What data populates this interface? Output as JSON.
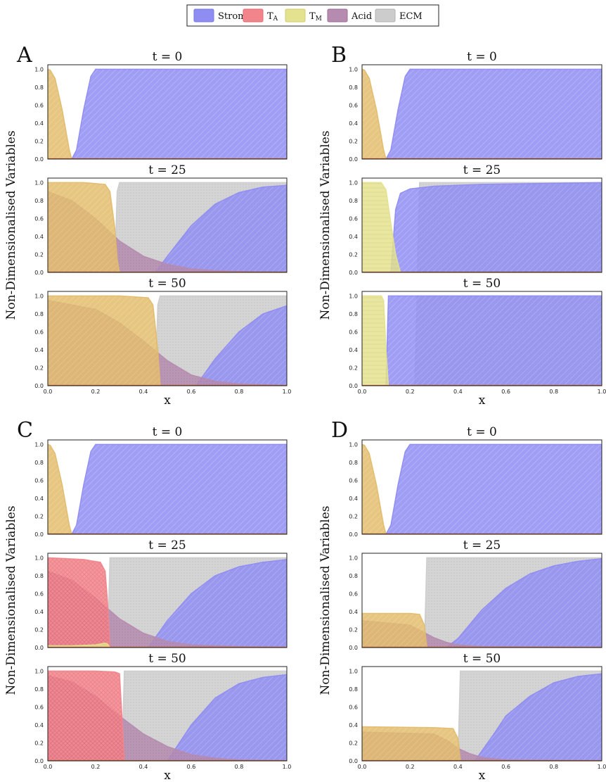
{
  "legend": {
    "placement": "top-center",
    "items": [
      {
        "label": "Stroma",
        "color": "#8f8cf2",
        "edge": "#7b78e0"
      },
      {
        "label": "T",
        "sub": "A",
        "color": "#f2848b",
        "edge": "#e46a72"
      },
      {
        "label": "T",
        "sub": "M",
        "color": "#e4e28e",
        "edge": "#cfcc70"
      },
      {
        "label": "Acid",
        "color": "#b58bb0",
        "edge": "#9c6f98"
      },
      {
        "label": "ECM",
        "color": "#cccccc",
        "edge": "#b3b3b3"
      }
    ]
  },
  "colors": {
    "stroma": "#8f8cf2",
    "ta": "#f2848b",
    "tm": "#e4e28e",
    "acid": "#b58bb0",
    "ecm": "#cccccc",
    "mixed_tumour": "#e2bc6c",
    "baseline": "#c05a28"
  },
  "shared": {
    "ylabel": "Non-Dimensionalised Variables",
    "xlabel": "x",
    "xticks": [
      "0.0",
      "0.2",
      "0.4",
      "0.6",
      "0.8",
      "1.0"
    ],
    "yticks": [
      "0.0",
      "0.2",
      "0.4",
      "0.6",
      "0.8",
      "1.0"
    ],
    "xlim": [
      0,
      1
    ],
    "ylim": [
      0,
      1.05
    ],
    "grid": false
  },
  "chart_data": [
    {
      "panel": "A",
      "type": "area",
      "subplots": [
        {
          "title": "t = 0",
          "layers": [
            {
              "var": "stroma",
              "x": [
                0,
                0.1,
                0.12,
                0.15,
                0.18,
                0.2,
                1.0
              ],
              "y": [
                0,
                0,
                0.1,
                0.55,
                0.92,
                1.0,
                1.0
              ]
            },
            {
              "var": "mixed_tumour",
              "x": [
                0,
                0.01,
                0.03,
                0.06,
                0.09,
                0.1,
                1.0
              ],
              "y": [
                1.0,
                0.99,
                0.9,
                0.55,
                0.1,
                0,
                0
              ]
            }
          ]
        },
        {
          "title": "t = 25",
          "layers": [
            {
              "var": "ecm",
              "x": [
                0,
                0.28,
                0.29,
                0.3,
                1.0
              ],
              "y": [
                0,
                0,
                0.9,
                1.0,
                1.0
              ]
            },
            {
              "var": "stroma",
              "x": [
                0,
                0.45,
                0.5,
                0.6,
                0.7,
                0.8,
                0.9,
                1.0
              ],
              "y": [
                0,
                0,
                0.18,
                0.52,
                0.76,
                0.89,
                0.95,
                0.97
              ]
            },
            {
              "var": "acid",
              "x": [
                0,
                0.1,
                0.2,
                0.3,
                0.4,
                0.5,
                0.6,
                0.7,
                0.8,
                1.0
              ],
              "y": [
                0.9,
                0.8,
                0.6,
                0.35,
                0.18,
                0.09,
                0.04,
                0.02,
                0.01,
                0
              ]
            },
            {
              "var": "mixed_tumour",
              "x": [
                0,
                0.15,
                0.24,
                0.26,
                0.28,
                0.29,
                0.3,
                1.0
              ],
              "y": [
                1.0,
                1.0,
                0.98,
                0.9,
                0.5,
                0.15,
                0,
                0
              ]
            }
          ]
        },
        {
          "title": "t = 50",
          "layers": [
            {
              "var": "ecm",
              "x": [
                0,
                0.45,
                0.46,
                0.47,
                1.0
              ],
              "y": [
                0,
                0,
                0.9,
                1.0,
                1.0
              ]
            },
            {
              "var": "stroma",
              "x": [
                0,
                0.62,
                0.7,
                0.8,
                0.9,
                1.0
              ],
              "y": [
                0,
                0,
                0.3,
                0.6,
                0.8,
                0.89
              ]
            },
            {
              "var": "acid",
              "x": [
                0,
                0.2,
                0.3,
                0.4,
                0.5,
                0.6,
                0.7,
                0.8,
                1.0
              ],
              "y": [
                0.95,
                0.85,
                0.7,
                0.5,
                0.28,
                0.12,
                0.05,
                0.02,
                0
              ]
            },
            {
              "var": "mixed_tumour",
              "x": [
                0,
                0.3,
                0.42,
                0.44,
                0.46,
                0.47,
                1.0
              ],
              "y": [
                1.0,
                1.0,
                0.98,
                0.9,
                0.4,
                0,
                0
              ]
            }
          ]
        }
      ]
    },
    {
      "panel": "B",
      "type": "area",
      "subplots": [
        {
          "title": "t = 0",
          "layers": [
            {
              "var": "stroma",
              "x": [
                0,
                0.1,
                0.12,
                0.15,
                0.18,
                0.2,
                1.0
              ],
              "y": [
                0,
                0,
                0.1,
                0.55,
                0.92,
                1.0,
                1.0
              ]
            },
            {
              "var": "mixed_tumour",
              "x": [
                0,
                0.01,
                0.03,
                0.06,
                0.09,
                0.1,
                1.0
              ],
              "y": [
                1.0,
                0.99,
                0.9,
                0.55,
                0.1,
                0,
                0
              ]
            }
          ]
        },
        {
          "title": "t = 25",
          "layers": [
            {
              "var": "ecm",
              "x": [
                0,
                0.23,
                0.24,
                1.0
              ],
              "y": [
                0,
                0,
                1.0,
                1.0
              ]
            },
            {
              "var": "stroma",
              "x": [
                0,
                0.12,
                0.14,
                0.16,
                0.2,
                0.3,
                0.5,
                1.0
              ],
              "y": [
                0,
                0,
                0.7,
                0.88,
                0.93,
                0.96,
                0.98,
                1.0
              ]
            },
            {
              "var": "tm",
              "x": [
                0,
                0.08,
                0.1,
                0.12,
                0.14,
                0.16,
                1.0
              ],
              "y": [
                1.0,
                1.0,
                0.92,
                0.55,
                0.2,
                0,
                0
              ]
            }
          ]
        },
        {
          "title": "t = 50",
          "layers": [
            {
              "var": "ecm",
              "x": [
                0,
                0.22,
                0.23,
                1.0
              ],
              "y": [
                0,
                0,
                1.0,
                1.0
              ]
            },
            {
              "var": "stroma",
              "x": [
                0,
                0.1,
                0.11,
                1.0
              ],
              "y": [
                0,
                0,
                1.0,
                1.0
              ]
            },
            {
              "var": "tm",
              "x": [
                0,
                0.08,
                0.09,
                0.1,
                0.11,
                1.0
              ],
              "y": [
                1.0,
                1.0,
                0.95,
                0.4,
                0,
                0
              ]
            }
          ]
        }
      ]
    },
    {
      "panel": "C",
      "type": "area",
      "subplots": [
        {
          "title": "t = 0",
          "layers": [
            {
              "var": "stroma",
              "x": [
                0,
                0.1,
                0.12,
                0.15,
                0.18,
                0.2,
                1.0
              ],
              "y": [
                0,
                0,
                0.1,
                0.55,
                0.92,
                1.0,
                1.0
              ]
            },
            {
              "var": "mixed_tumour",
              "x": [
                0,
                0.01,
                0.03,
                0.06,
                0.09,
                0.1,
                1.0
              ],
              "y": [
                1.0,
                0.99,
                0.9,
                0.55,
                0.1,
                0,
                0
              ]
            }
          ]
        },
        {
          "title": "t = 25",
          "layers": [
            {
              "var": "ecm",
              "x": [
                0,
                0.25,
                0.26,
                1.0
              ],
              "y": [
                0,
                0,
                1.0,
                1.0
              ]
            },
            {
              "var": "stroma",
              "x": [
                0,
                0.42,
                0.5,
                0.6,
                0.7,
                0.8,
                0.9,
                1.0
              ],
              "y": [
                0,
                0,
                0.3,
                0.6,
                0.8,
                0.9,
                0.95,
                0.98
              ]
            },
            {
              "var": "acid",
              "x": [
                0,
                0.1,
                0.2,
                0.3,
                0.4,
                0.5,
                0.6,
                0.8,
                1.0
              ],
              "y": [
                0.85,
                0.75,
                0.55,
                0.32,
                0.16,
                0.07,
                0.03,
                0.01,
                0
              ]
            },
            {
              "var": "ta",
              "x": [
                0,
                0.15,
                0.22,
                0.24,
                0.25,
                0.26,
                1.0
              ],
              "y": [
                1.0,
                0.98,
                0.95,
                0.85,
                0.5,
                0,
                0
              ]
            },
            {
              "var": "tm",
              "x": [
                0,
                0.1,
                0.2,
                0.24,
                0.25,
                0.26,
                1.0
              ],
              "y": [
                0.02,
                0.02,
                0.03,
                0.05,
                0.04,
                0,
                0
              ]
            }
          ]
        },
        {
          "title": "t = 50",
          "layers": [
            {
              "var": "ecm",
              "x": [
                0,
                0.31,
                0.32,
                1.0
              ],
              "y": [
                0,
                0,
                1.0,
                1.0
              ]
            },
            {
              "var": "stroma",
              "x": [
                0,
                0.5,
                0.6,
                0.7,
                0.8,
                0.9,
                1.0
              ],
              "y": [
                0,
                0,
                0.4,
                0.7,
                0.86,
                0.93,
                0.96
              ]
            },
            {
              "var": "acid",
              "x": [
                0,
                0.1,
                0.2,
                0.3,
                0.4,
                0.5,
                0.6,
                0.7,
                0.8,
                1.0
              ],
              "y": [
                0.95,
                0.88,
                0.72,
                0.5,
                0.3,
                0.16,
                0.07,
                0.03,
                0.01,
                0
              ]
            },
            {
              "var": "ta",
              "x": [
                0,
                0.2,
                0.28,
                0.3,
                0.31,
                0.32,
                1.0
              ],
              "y": [
                1.0,
                1.0,
                0.99,
                0.97,
                0.5,
                0,
                0
              ]
            }
          ]
        }
      ]
    },
    {
      "panel": "D",
      "type": "area",
      "subplots": [
        {
          "title": "t = 0",
          "layers": [
            {
              "var": "stroma",
              "x": [
                0,
                0.1,
                0.12,
                0.15,
                0.18,
                0.2,
                1.0
              ],
              "y": [
                0,
                0,
                0.1,
                0.55,
                0.92,
                1.0,
                1.0
              ]
            },
            {
              "var": "mixed_tumour",
              "x": [
                0,
                0.01,
                0.03,
                0.06,
                0.09,
                0.1,
                1.0
              ],
              "y": [
                1.0,
                0.99,
                0.9,
                0.55,
                0.1,
                0,
                0
              ]
            }
          ]
        },
        {
          "title": "t = 25",
          "layers": [
            {
              "var": "ecm",
              "x": [
                0,
                0.26,
                0.27,
                1.0
              ],
              "y": [
                0,
                0,
                1.0,
                1.0
              ]
            },
            {
              "var": "stroma",
              "x": [
                0,
                0.35,
                0.4,
                0.5,
                0.6,
                0.7,
                0.8,
                0.9,
                1.0
              ],
              "y": [
                0,
                0,
                0.1,
                0.42,
                0.66,
                0.82,
                0.91,
                0.96,
                0.99
              ]
            },
            {
              "var": "acid",
              "x": [
                0,
                0.2,
                0.25,
                0.3,
                0.35,
                0.4,
                0.5,
                1.0
              ],
              "y": [
                0.3,
                0.25,
                0.18,
                0.11,
                0.06,
                0.03,
                0.01,
                0
              ]
            },
            {
              "var": "mixed_tumour",
              "x": [
                0,
                0.2,
                0.24,
                0.26,
                0.27,
                1.0
              ],
              "y": [
                0.38,
                0.38,
                0.37,
                0.25,
                0,
                0
              ]
            }
          ]
        },
        {
          "title": "t = 50",
          "layers": [
            {
              "var": "ecm",
              "x": [
                0,
                0.4,
                0.41,
                1.0
              ],
              "y": [
                0,
                0,
                1.0,
                1.0
              ]
            },
            {
              "var": "stroma",
              "x": [
                0,
                0.47,
                0.55,
                0.6,
                0.7,
                0.8,
                0.9,
                1.0
              ],
              "y": [
                0,
                0,
                0.3,
                0.5,
                0.72,
                0.87,
                0.94,
                0.97
              ]
            },
            {
              "var": "acid",
              "x": [
                0,
                0.3,
                0.36,
                0.4,
                0.45,
                0.5,
                0.6,
                1.0
              ],
              "y": [
                0.32,
                0.3,
                0.22,
                0.14,
                0.08,
                0.04,
                0.01,
                0
              ]
            },
            {
              "var": "mixed_tumour",
              "x": [
                0,
                0.3,
                0.38,
                0.4,
                0.41,
                1.0
              ],
              "y": [
                0.38,
                0.37,
                0.36,
                0.25,
                0,
                0
              ]
            }
          ]
        }
      ]
    }
  ]
}
